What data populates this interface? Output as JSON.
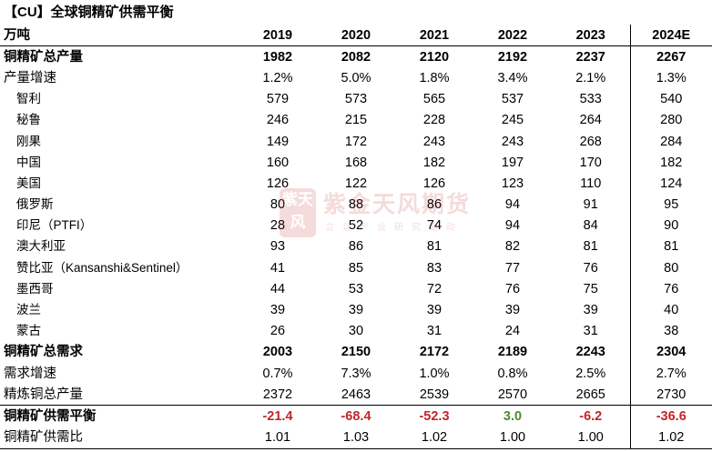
{
  "title": "【CU】全球铜精矿供需平衡",
  "header": {
    "unit": "万吨",
    "years": [
      "2019",
      "2020",
      "2021",
      "2022",
      "2023",
      "2024E"
    ]
  },
  "rows": [
    {
      "label": "铜精矿总产量",
      "values": [
        "1982",
        "2082",
        "2120",
        "2192",
        "2237",
        "2267"
      ]
    },
    {
      "label": "产量增速",
      "values": [
        "1.2%",
        "5.0%",
        "1.8%",
        "3.4%",
        "2.1%",
        "1.3%"
      ]
    },
    {
      "label": "智利",
      "values": [
        "579",
        "573",
        "565",
        "537",
        "533",
        "540"
      ]
    },
    {
      "label": "秘鲁",
      "values": [
        "246",
        "215",
        "228",
        "245",
        "264",
        "280"
      ]
    },
    {
      "label": "刚果",
      "values": [
        "149",
        "172",
        "243",
        "243",
        "268",
        "284"
      ]
    },
    {
      "label": "中国",
      "values": [
        "160",
        "168",
        "182",
        "197",
        "170",
        "182"
      ]
    },
    {
      "label": "美国",
      "values": [
        "126",
        "122",
        "126",
        "123",
        "110",
        "124"
      ]
    },
    {
      "label": "俄罗斯",
      "values": [
        "80",
        "88",
        "86",
        "94",
        "91",
        "95"
      ]
    },
    {
      "label": "印尼（PTFI）",
      "values": [
        "28",
        "52",
        "74",
        "94",
        "84",
        "90"
      ]
    },
    {
      "label": "澳大利亚",
      "values": [
        "93",
        "86",
        "81",
        "82",
        "81",
        "81"
      ]
    },
    {
      "label": "赞比亚（Kansanshi&Sentinel）",
      "values": [
        "41",
        "85",
        "83",
        "77",
        "76",
        "80"
      ]
    },
    {
      "label": "墨西哥",
      "values": [
        "44",
        "53",
        "72",
        "76",
        "75",
        "76"
      ]
    },
    {
      "label": "波兰",
      "values": [
        "39",
        "39",
        "39",
        "39",
        "39",
        "40"
      ]
    },
    {
      "label": "蒙古",
      "values": [
        "26",
        "30",
        "31",
        "24",
        "31",
        "38"
      ]
    },
    {
      "label": "铜精矿总需求",
      "values": [
        "2003",
        "2150",
        "2172",
        "2189",
        "2243",
        "2304"
      ]
    },
    {
      "label": "需求增速",
      "values": [
        "0.7%",
        "7.3%",
        "1.0%",
        "0.8%",
        "2.5%",
        "2.7%"
      ]
    },
    {
      "label": "精炼铜总产量",
      "values": [
        "2372",
        "2463",
        "2539",
        "2570",
        "2665",
        "2730"
      ]
    },
    {
      "label": "铜精矿供需平衡",
      "values": [
        "-21.4",
        "-68.4",
        "-52.3",
        "3.0",
        "-6.2",
        "-36.6"
      ]
    },
    {
      "label": "铜精矿供需比",
      "values": [
        "1.01",
        "1.03",
        "1.02",
        "1.00",
        "1.00",
        "1.02"
      ]
    }
  ],
  "watermark": {
    "seal": "紫天风",
    "name": "紫金天风期货",
    "sub": "立足产业研究驱动"
  },
  "colors": {
    "negative": "#c0262d",
    "positive": "#4e8a2c",
    "watermark": "#c0262d"
  }
}
